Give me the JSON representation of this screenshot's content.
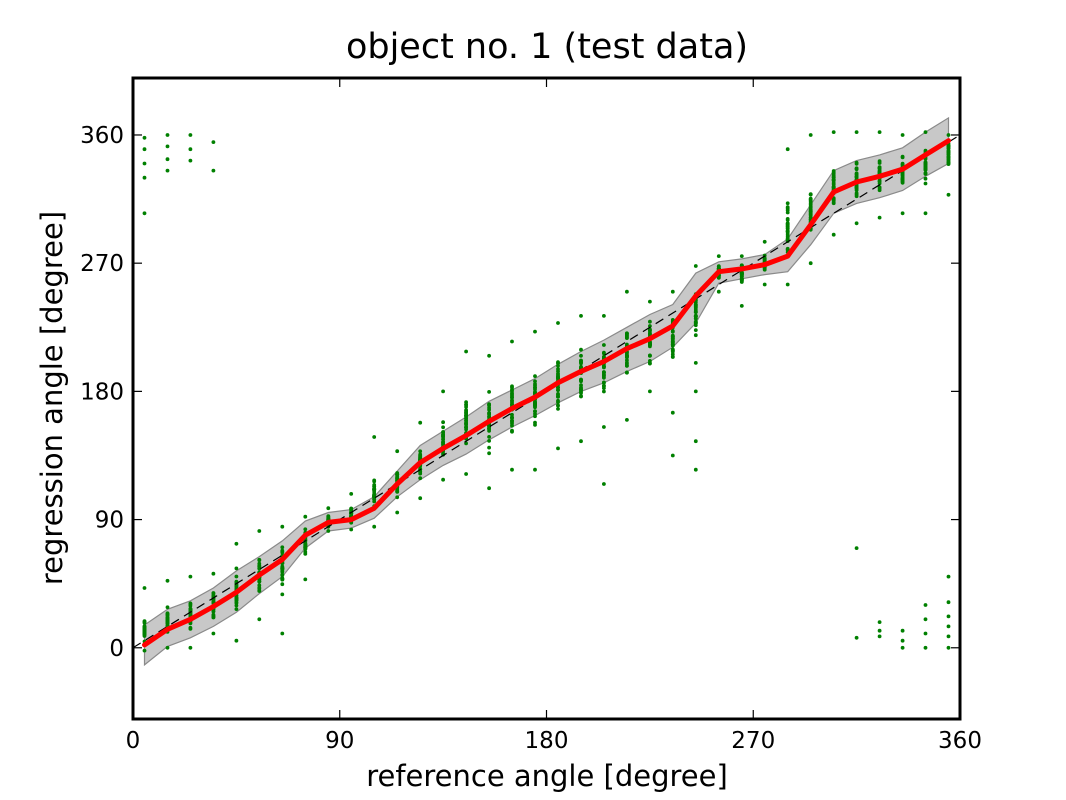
{
  "chart_data": {
    "type": "line",
    "title": "object no. 1 (test data)",
    "xlabel": "reference angle [degree]",
    "ylabel": "regression angle [degree]",
    "xlim": [
      0,
      360
    ],
    "ylim": [
      -50,
      400
    ],
    "xticks": [
      0,
      90,
      180,
      270,
      360
    ],
    "yticks": [
      0,
      90,
      180,
      270,
      360
    ],
    "grid": false,
    "colors": {
      "mean": "#ff0000",
      "band_fill": "#c8c8c8",
      "band_edge": "#8a8a8a",
      "scatter": "#008000",
      "diagonal": "#000000"
    },
    "diagonal_reference": {
      "x": [
        0,
        360
      ],
      "y": [
        0,
        360
      ],
      "style": "dashed"
    },
    "series": [
      {
        "kind": "line",
        "x": [
          5,
          15,
          25,
          35,
          45,
          55,
          65,
          75,
          85,
          95,
          105,
          115,
          125,
          135,
          145,
          155,
          165,
          175,
          185,
          195,
          205,
          215,
          225,
          235,
          245,
          255,
          265,
          275,
          285,
          295,
          305,
          315,
          325,
          335,
          345,
          355
        ],
        "y": [
          2,
          13,
          20,
          29,
          39,
          51,
          62,
          79,
          88,
          90,
          98,
          115,
          130,
          140,
          149,
          159,
          168,
          176,
          186,
          194,
          201,
          210,
          217,
          226,
          247,
          264,
          266,
          269,
          275,
          297,
          320,
          327,
          331,
          336,
          346,
          356
        ]
      },
      {
        "kind": "band",
        "x": [
          5,
          15,
          25,
          35,
          45,
          55,
          65,
          75,
          85,
          95,
          105,
          115,
          125,
          135,
          145,
          155,
          165,
          175,
          185,
          195,
          205,
          215,
          225,
          235,
          245,
          255,
          265,
          275,
          285,
          295,
          305,
          315,
          325,
          335,
          345,
          355
        ],
        "lower": [
          -12,
          1,
          7,
          15,
          25,
          38,
          50,
          70,
          82,
          84,
          91,
          106,
          118,
          128,
          136,
          146,
          155,
          163,
          172,
          180,
          186,
          194,
          201,
          211,
          228,
          256,
          259,
          262,
          264,
          283,
          305,
          312,
          316,
          321,
          331,
          340
        ],
        "upper": [
          16,
          27,
          33,
          42,
          54,
          64,
          75,
          89,
          95,
          97,
          106,
          124,
          142,
          152,
          162,
          173,
          181,
          189,
          199,
          208,
          216,
          225,
          234,
          241,
          263,
          271,
          273,
          276,
          287,
          311,
          335,
          342,
          346,
          351,
          362,
          372
        ]
      }
    ],
    "scatter_clusters": [
      {
        "x": 5,
        "y_min": -2,
        "y_max": 42
      },
      {
        "x": 15,
        "y_min": 0,
        "y_max": 47
      },
      {
        "x": 25,
        "y_min": 0,
        "y_max": 50
      },
      {
        "x": 35,
        "y_min": 10,
        "y_max": 52
      },
      {
        "x": 45,
        "y_min": 5,
        "y_max": 73
      },
      {
        "x": 55,
        "y_min": 20,
        "y_max": 82
      },
      {
        "x": 65,
        "y_min": 10,
        "y_max": 85
      },
      {
        "x": 75,
        "y_min": 48,
        "y_max": 92
      },
      {
        "x": 85,
        "y_min": 82,
        "y_max": 98
      },
      {
        "x": 95,
        "y_min": 83,
        "y_max": 108
      },
      {
        "x": 105,
        "y_min": 85,
        "y_max": 148
      },
      {
        "x": 115,
        "y_min": 95,
        "y_max": 138
      },
      {
        "x": 125,
        "y_min": 105,
        "y_max": 158
      },
      {
        "x": 135,
        "y_min": 118,
        "y_max": 180
      },
      {
        "x": 145,
        "y_min": 122,
        "y_max": 208
      },
      {
        "x": 155,
        "y_min": 112,
        "y_max": 205
      },
      {
        "x": 165,
        "y_min": 125,
        "y_max": 215
      },
      {
        "x": 175,
        "y_min": 125,
        "y_max": 222
      },
      {
        "x": 185,
        "y_min": 140,
        "y_max": 228
      },
      {
        "x": 195,
        "y_min": 145,
        "y_max": 233
      },
      {
        "x": 205,
        "y_min": 155,
        "y_max": 233
      },
      {
        "x": 215,
        "y_min": 160,
        "y_max": 250
      },
      {
        "x": 225,
        "y_min": 180,
        "y_max": 243
      },
      {
        "x": 235,
        "y_min": 165,
        "y_max": 250
      },
      {
        "x": 245,
        "y_min": 180,
        "y_max": 268
      },
      {
        "x": 255,
        "y_min": 250,
        "y_max": 275
      },
      {
        "x": 265,
        "y_min": 240,
        "y_max": 275
      },
      {
        "x": 275,
        "y_min": 255,
        "y_max": 285
      },
      {
        "x": 285,
        "y_min": 255,
        "y_max": 350
      },
      {
        "x": 295,
        "y_min": 270,
        "y_max": 360
      },
      {
        "x": 305,
        "y_min": 290,
        "y_max": 362
      },
      {
        "x": 315,
        "y_min": 298,
        "y_max": 362
      },
      {
        "x": 325,
        "y_min": 302,
        "y_max": 362
      },
      {
        "x": 335,
        "y_min": 305,
        "y_max": 360
      },
      {
        "x": 345,
        "y_min": 305,
        "y_max": 362
      },
      {
        "x": 355,
        "y_min": 318,
        "y_max": 360
      }
    ],
    "scatter_outliers": [
      {
        "x": 5,
        "y": 305
      },
      {
        "x": 5,
        "y": 330
      },
      {
        "x": 5,
        "y": 340
      },
      {
        "x": 5,
        "y": 350
      },
      {
        "x": 5,
        "y": 358
      },
      {
        "x": 15,
        "y": 335
      },
      {
        "x": 15,
        "y": 343
      },
      {
        "x": 15,
        "y": 352
      },
      {
        "x": 15,
        "y": 360
      },
      {
        "x": 25,
        "y": 342
      },
      {
        "x": 25,
        "y": 350
      },
      {
        "x": 25,
        "y": 360
      },
      {
        "x": 35,
        "y": 335
      },
      {
        "x": 35,
        "y": 355
      },
      {
        "x": 245,
        "y": 125
      },
      {
        "x": 245,
        "y": 145
      },
      {
        "x": 245,
        "y": 200
      },
      {
        "x": 235,
        "y": 135
      },
      {
        "x": 205,
        "y": 115
      },
      {
        "x": 315,
        "y": 70
      },
      {
        "x": 315,
        "y": 7
      },
      {
        "x": 325,
        "y": 8
      },
      {
        "x": 325,
        "y": 12
      },
      {
        "x": 325,
        "y": 18
      },
      {
        "x": 335,
        "y": 0
      },
      {
        "x": 335,
        "y": 5
      },
      {
        "x": 335,
        "y": 12
      },
      {
        "x": 345,
        "y": 0
      },
      {
        "x": 345,
        "y": 10
      },
      {
        "x": 345,
        "y": 20
      },
      {
        "x": 345,
        "y": 30
      },
      {
        "x": 355,
        "y": 0
      },
      {
        "x": 355,
        "y": 8
      },
      {
        "x": 355,
        "y": 15
      },
      {
        "x": 355,
        "y": 22
      },
      {
        "x": 355,
        "y": 32
      },
      {
        "x": 355,
        "y": 50
      }
    ]
  }
}
